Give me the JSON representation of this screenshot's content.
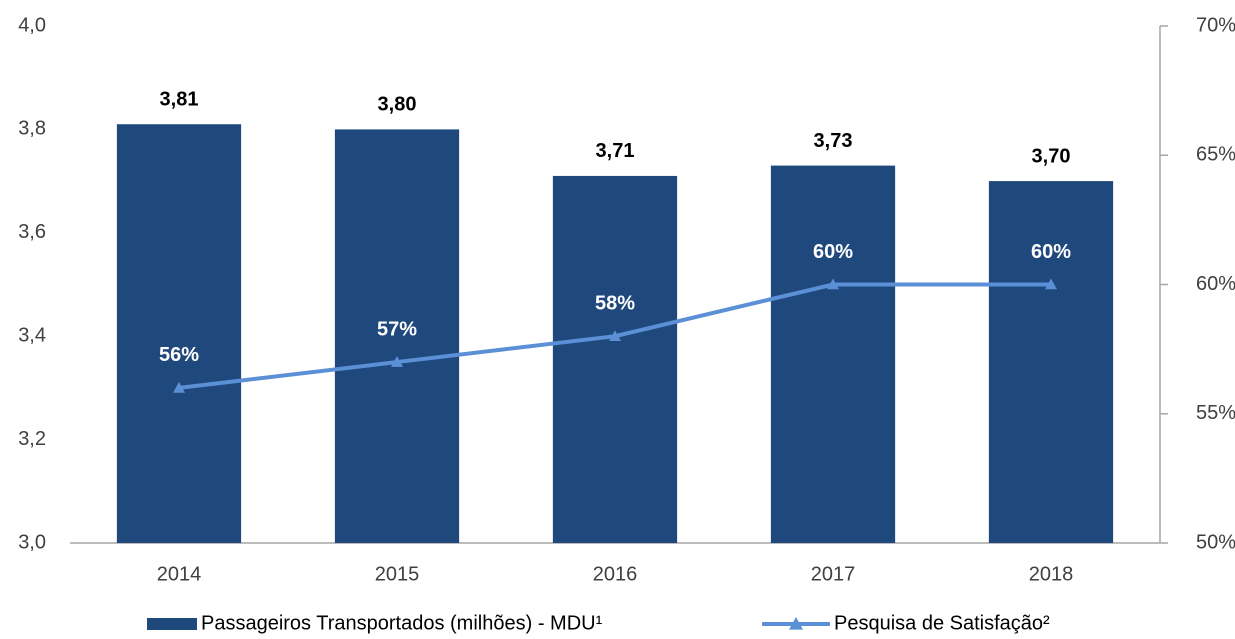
{
  "chart_data": {
    "type": "bar",
    "categories": [
      "2014",
      "2015",
      "2016",
      "2017",
      "2018"
    ],
    "series": [
      {
        "name": "Passageiros Transportados (milhões) - MDU¹",
        "type": "bar",
        "color": "#1f497d",
        "values": [
          3.81,
          3.8,
          3.71,
          3.73,
          3.7
        ],
        "value_labels": [
          "3,81",
          "3,80",
          "3,71",
          "3,73",
          "3,70"
        ]
      },
      {
        "name": "Pesquisa de Satisfação²",
        "type": "line",
        "axis": "y2",
        "color": "#5b8fd6",
        "values": [
          56,
          57,
          58,
          60,
          60
        ],
        "value_labels": [
          "56%",
          "57%",
          "58%",
          "60%",
          "60%"
        ]
      }
    ],
    "ylim": [
      3.0,
      4.0
    ],
    "yticks": [
      {
        "value": 3.0,
        "label": "3,0"
      },
      {
        "value": 3.2,
        "label": "3,2"
      },
      {
        "value": 3.4,
        "label": "3,4"
      },
      {
        "value": 3.6,
        "label": "3,6"
      },
      {
        "value": 3.8,
        "label": "3,8"
      },
      {
        "value": 4.0,
        "label": "4,0"
      }
    ],
    "y2lim": [
      50,
      70
    ],
    "y2ticks": [
      {
        "value": 50,
        "label": "50%"
      },
      {
        "value": 55,
        "label": "55%"
      },
      {
        "value": 60,
        "label": "60%"
      },
      {
        "value": 65,
        "label": "65%"
      },
      {
        "value": 70,
        "label": "70%"
      }
    ],
    "legend": "bottom"
  }
}
